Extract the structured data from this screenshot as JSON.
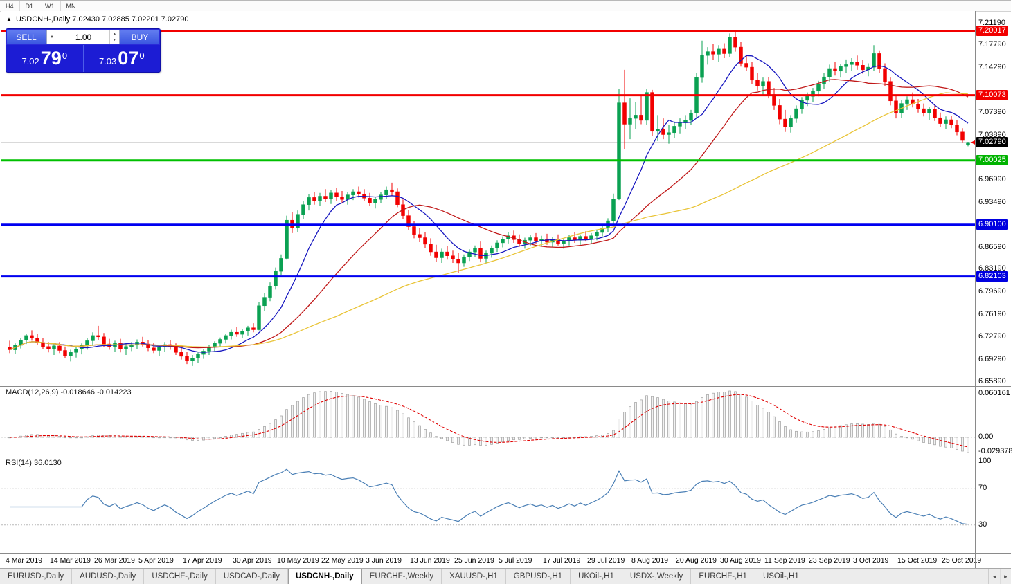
{
  "toolbar": {
    "timeframes": [
      "H4",
      "D1",
      "W1",
      "MN"
    ]
  },
  "chart": {
    "symbol_period": "USDCNH-,Daily",
    "ohlc_text": "7.02430 7.02885 7.02201 7.02790"
  },
  "icons": {
    "collapse_triangle": "▲",
    "volume_dropdown": "▼",
    "spinner_up": "▲",
    "spinner_down": "▼",
    "tab_scroll_left": "◄",
    "tab_scroll_right": "►"
  },
  "trade_panel": {
    "sell_label": "SELL",
    "buy_label": "BUY",
    "volume": "1.00",
    "bid_small": "7.02",
    "bid_big": "79",
    "bid_sup": "0",
    "ask_small": "7.03",
    "ask_big": "07",
    "ask_sup": "0"
  },
  "macd": {
    "label": "MACD(12,26,9) -0.018646 -0.014223",
    "axis_max": "0.060161",
    "axis_zero": "0.00",
    "axis_min": "-0.029378"
  },
  "rsi": {
    "label": "RSI(14) 36.0130",
    "axis": [
      "100",
      "70",
      "30"
    ]
  },
  "tabs": {
    "active_index": 4,
    "items": [
      "EURUSD-,Daily",
      "AUDUSD-,Daily",
      "USDCHF-,Daily",
      "USDCAD-,Daily",
      "USDCNH-,Daily",
      "EURCHF-,Weekly",
      "XAUUSD-,H1",
      "GBPUSD-,H1",
      "UKOil-,H1",
      "USDX-,Weekly",
      "EURCHF-,H1",
      "USOil-,H1"
    ]
  },
  "chart_data": {
    "type": "candlestick",
    "symbol": "USDCNH-",
    "period": "Daily",
    "current_price": 7.0279,
    "ylim": [
      6.652,
      7.2306
    ],
    "colors": {
      "candle_up": "#0aa152",
      "candle_down": "#f20000",
      "background": "#ffffff",
      "trade_panel_blue": "#1c1cd4"
    },
    "y_ticks": [
      "7.21190",
      "7.17790",
      "7.14290",
      "7.07390",
      "7.03890",
      "6.96990",
      "6.93490",
      "6.86590",
      "6.83190",
      "6.79690",
      "6.76190",
      "6.72790",
      "6.69290",
      "6.65890"
    ],
    "axis_markers": [
      {
        "label": "7.20017",
        "color": "#f20000"
      },
      {
        "label": "7.10073",
        "color": "#f20000"
      },
      {
        "label": "7.02790",
        "color": "#000000"
      },
      {
        "label": "7.00025",
        "color": "#00b300"
      },
      {
        "label": "6.90100",
        "color": "#0000e0"
      },
      {
        "label": "6.82103",
        "color": "#0000e0"
      }
    ],
    "horizontal_lines": [
      {
        "price": 7.20017,
        "color": "#f20000",
        "width": 3
      },
      {
        "price": 7.10073,
        "color": "#f20000",
        "width": 3
      },
      {
        "price": 7.00025,
        "color": "#00c000",
        "width": 3
      },
      {
        "price": 6.901,
        "color": "#0000f0",
        "width": 3
      },
      {
        "price": 6.82103,
        "color": "#0000f0",
        "width": 3
      }
    ],
    "indicators": {
      "moving_averages": [
        {
          "period": 10,
          "color": "#1818c0"
        },
        {
          "period": 25,
          "color": "#c01818"
        },
        {
          "period": 60,
          "color": "#e9c437"
        }
      ],
      "macd": {
        "fast": 12,
        "slow": 26,
        "signal": 9,
        "value": -0.018646,
        "signal_value": -0.014223
      },
      "rsi": {
        "period": 14,
        "value": 36.013,
        "levels": [
          70,
          30
        ]
      }
    },
    "x_labels": [
      {
        "i": 0,
        "label": "4 Mar 2019"
      },
      {
        "i": 8,
        "label": "14 Mar 2019"
      },
      {
        "i": 16,
        "label": "26 Mar 2019"
      },
      {
        "i": 24,
        "label": "5 Apr 2019"
      },
      {
        "i": 32,
        "label": "17 Apr 2019"
      },
      {
        "i": 41,
        "label": "30 Apr 2019"
      },
      {
        "i": 49,
        "label": "10 May 2019"
      },
      {
        "i": 57,
        "label": "22 May 2019"
      },
      {
        "i": 65,
        "label": "3 Jun 2019"
      },
      {
        "i": 73,
        "label": "13 Jun 2019"
      },
      {
        "i": 81,
        "label": "25 Jun 2019"
      },
      {
        "i": 89,
        "label": "5 Jul 2019"
      },
      {
        "i": 97,
        "label": "17 Jul 2019"
      },
      {
        "i": 105,
        "label": "29 Jul 2019"
      },
      {
        "i": 113,
        "label": "8 Aug 2019"
      },
      {
        "i": 121,
        "label": "20 Aug 2019"
      },
      {
        "i": 129,
        "label": "30 Aug 2019"
      },
      {
        "i": 137,
        "label": "11 Sep 2019"
      },
      {
        "i": 145,
        "label": "23 Sep 2019"
      },
      {
        "i": 153,
        "label": "3 Oct 2019"
      },
      {
        "i": 161,
        "label": "15 Oct 2019"
      },
      {
        "i": 169,
        "label": "25 Oct 2019"
      }
    ],
    "ohlc": [
      [
        6.712,
        6.722,
        6.703,
        6.708
      ],
      [
        6.708,
        6.718,
        6.702,
        6.715
      ],
      [
        6.715,
        6.726,
        6.71,
        6.723
      ],
      [
        6.723,
        6.733,
        6.717,
        6.73
      ],
      [
        6.73,
        6.738,
        6.722,
        6.726
      ],
      [
        6.726,
        6.733,
        6.715,
        6.719
      ],
      [
        6.719,
        6.726,
        6.709,
        6.713
      ],
      [
        6.713,
        6.72,
        6.704,
        6.709
      ],
      [
        6.709,
        6.717,
        6.7,
        6.714
      ],
      [
        6.714,
        6.72,
        6.703,
        6.707
      ],
      [
        6.707,
        6.713,
        6.695,
        6.699
      ],
      [
        6.699,
        6.708,
        6.69,
        6.704
      ],
      [
        6.704,
        6.712,
        6.696,
        6.709
      ],
      [
        6.709,
        6.718,
        6.701,
        6.715
      ],
      [
        6.715,
        6.726,
        6.708,
        6.722
      ],
      [
        6.722,
        6.735,
        6.714,
        6.73
      ],
      [
        6.73,
        6.745,
        6.723,
        6.728
      ],
      [
        6.728,
        6.734,
        6.712,
        6.717
      ],
      [
        6.717,
        6.725,
        6.708,
        6.713
      ],
      [
        6.713,
        6.722,
        6.705,
        6.718
      ],
      [
        6.718,
        6.725,
        6.704,
        6.709
      ],
      [
        6.709,
        6.717,
        6.7,
        6.713
      ],
      [
        6.713,
        6.72,
        6.706,
        6.716
      ],
      [
        6.716,
        6.724,
        6.709,
        6.72
      ],
      [
        6.72,
        6.728,
        6.713,
        6.717
      ],
      [
        6.717,
        6.723,
        6.706,
        6.711
      ],
      [
        6.711,
        6.719,
        6.703,
        6.707
      ],
      [
        6.707,
        6.715,
        6.698,
        6.712
      ],
      [
        6.712,
        6.72,
        6.705,
        6.716
      ],
      [
        6.716,
        6.723,
        6.708,
        6.712
      ],
      [
        6.712,
        6.718,
        6.7,
        6.704
      ],
      [
        6.704,
        6.711,
        6.693,
        6.698
      ],
      [
        6.698,
        6.705,
        6.686,
        6.691
      ],
      [
        6.691,
        6.7,
        6.683,
        6.695
      ],
      [
        6.695,
        6.704,
        6.688,
        6.701
      ],
      [
        6.701,
        6.709,
        6.694,
        6.706
      ],
      [
        6.706,
        6.715,
        6.7,
        6.712
      ],
      [
        6.712,
        6.721,
        6.706,
        6.718
      ],
      [
        6.718,
        6.727,
        6.712,
        6.724
      ],
      [
        6.724,
        6.733,
        6.718,
        6.73
      ],
      [
        6.73,
        6.739,
        6.724,
        6.735
      ],
      [
        6.735,
        6.743,
        6.728,
        6.732
      ],
      [
        6.732,
        6.74,
        6.726,
        6.737
      ],
      [
        6.737,
        6.745,
        6.73,
        6.742
      ],
      [
        6.742,
        6.749,
        6.735,
        6.739
      ],
      [
        6.739,
        6.782,
        6.738,
        6.776
      ],
      [
        6.776,
        6.795,
        6.768,
        6.789
      ],
      [
        6.789,
        6.812,
        6.783,
        6.806
      ],
      [
        6.806,
        6.835,
        6.801,
        6.829
      ],
      [
        6.829,
        6.855,
        6.823,
        6.849
      ],
      [
        6.849,
        6.915,
        6.847,
        6.908
      ],
      [
        6.908,
        6.921,
        6.888,
        6.896
      ],
      [
        6.896,
        6.923,
        6.89,
        6.917
      ],
      [
        6.917,
        6.938,
        6.91,
        6.932
      ],
      [
        6.932,
        6.948,
        6.923,
        6.943
      ],
      [
        6.943,
        6.952,
        6.932,
        6.938
      ],
      [
        6.938,
        6.95,
        6.93,
        6.945
      ],
      [
        6.945,
        6.956,
        6.936,
        6.941
      ],
      [
        6.941,
        6.955,
        6.933,
        6.95
      ],
      [
        6.95,
        6.958,
        6.938,
        6.944
      ],
      [
        6.944,
        6.953,
        6.935,
        6.94
      ],
      [
        6.94,
        6.951,
        6.932,
        6.947
      ],
      [
        6.947,
        6.956,
        6.939,
        6.952
      ],
      [
        6.952,
        6.96,
        6.943,
        6.948
      ],
      [
        6.948,
        6.956,
        6.937,
        6.942
      ],
      [
        6.942,
        6.95,
        6.93,
        6.935
      ],
      [
        6.935,
        6.944,
        6.926,
        6.94
      ],
      [
        6.94,
        6.952,
        6.934,
        6.947
      ],
      [
        6.947,
        6.96,
        6.941,
        6.955
      ],
      [
        6.955,
        6.966,
        6.946,
        6.952
      ],
      [
        6.952,
        6.957,
        6.928,
        6.932
      ],
      [
        6.932,
        6.94,
        6.91,
        6.915
      ],
      [
        6.915,
        6.924,
        6.893,
        6.898
      ],
      [
        6.898,
        6.907,
        6.88,
        6.886
      ],
      [
        6.886,
        6.896,
        6.874,
        6.881
      ],
      [
        6.881,
        6.889,
        6.865,
        6.871
      ],
      [
        6.871,
        6.88,
        6.853,
        6.859
      ],
      [
        6.859,
        6.87,
        6.844,
        6.85
      ],
      [
        6.85,
        6.864,
        6.842,
        6.859
      ],
      [
        6.859,
        6.868,
        6.847,
        6.853
      ],
      [
        6.853,
        6.861,
        6.842,
        6.848
      ],
      [
        6.848,
        6.857,
        6.826,
        6.842
      ],
      [
        6.842,
        6.855,
        6.836,
        6.851
      ],
      [
        6.851,
        6.863,
        6.845,
        6.859
      ],
      [
        6.859,
        6.869,
        6.851,
        6.865
      ],
      [
        6.865,
        6.875,
        6.843,
        6.849
      ],
      [
        6.849,
        6.861,
        6.842,
        6.857
      ],
      [
        6.857,
        6.869,
        6.85,
        6.865
      ],
      [
        6.865,
        6.877,
        6.859,
        6.873
      ],
      [
        6.873,
        6.883,
        6.866,
        6.879
      ],
      [
        6.879,
        6.889,
        6.872,
        6.884
      ],
      [
        6.884,
        6.892,
        6.873,
        6.878
      ],
      [
        6.878,
        6.886,
        6.867,
        6.872
      ],
      [
        6.872,
        6.881,
        6.864,
        6.877
      ],
      [
        6.877,
        6.885,
        6.869,
        6.881
      ],
      [
        6.881,
        6.888,
        6.871,
        6.876
      ],
      [
        6.876,
        6.884,
        6.868,
        6.879
      ],
      [
        6.879,
        6.887,
        6.87,
        6.874
      ],
      [
        6.874,
        6.882,
        6.866,
        6.878
      ],
      [
        6.878,
        6.886,
        6.869,
        6.872
      ],
      [
        6.872,
        6.88,
        6.864,
        6.876
      ],
      [
        6.876,
        6.885,
        6.869,
        6.881
      ],
      [
        6.881,
        6.889,
        6.873,
        6.877
      ],
      [
        6.877,
        6.886,
        6.87,
        6.883
      ],
      [
        6.883,
        6.891,
        6.875,
        6.879
      ],
      [
        6.879,
        6.888,
        6.872,
        6.884
      ],
      [
        6.884,
        6.893,
        6.877,
        6.889
      ],
      [
        6.889,
        6.9,
        6.883,
        6.896
      ],
      [
        6.896,
        6.911,
        6.889,
        6.907
      ],
      [
        6.907,
        6.949,
        6.901,
        6.941
      ],
      [
        6.941,
        7.111,
        6.939,
        7.089
      ],
      [
        7.089,
        7.14,
        7.018,
        7.056
      ],
      [
        7.056,
        7.096,
        7.033,
        7.065
      ],
      [
        7.065,
        7.09,
        7.048,
        7.07
      ],
      [
        7.07,
        7.1,
        7.056,
        7.062
      ],
      [
        7.062,
        7.11,
        7.055,
        7.105
      ],
      [
        7.105,
        7.109,
        7.038,
        7.045
      ],
      [
        7.045,
        7.07,
        7.03,
        7.048
      ],
      [
        7.048,
        7.065,
        7.033,
        7.04
      ],
      [
        7.04,
        7.055,
        7.026,
        7.043
      ],
      [
        7.043,
        7.06,
        7.035,
        7.053
      ],
      [
        7.053,
        7.065,
        7.042,
        7.058
      ],
      [
        7.058,
        7.07,
        7.048,
        7.062
      ],
      [
        7.062,
        7.078,
        7.055,
        7.073
      ],
      [
        7.073,
        7.135,
        7.065,
        7.128
      ],
      [
        7.128,
        7.185,
        7.12,
        7.162
      ],
      [
        7.162,
        7.175,
        7.148,
        7.168
      ],
      [
        7.168,
        7.18,
        7.155,
        7.164
      ],
      [
        7.164,
        7.178,
        7.152,
        7.172
      ],
      [
        7.172,
        7.181,
        7.158,
        7.165
      ],
      [
        7.165,
        7.196,
        7.16,
        7.19
      ],
      [
        7.19,
        7.199,
        7.168,
        7.175
      ],
      [
        7.175,
        7.183,
        7.145,
        7.15
      ],
      [
        7.15,
        7.162,
        7.138,
        7.144
      ],
      [
        7.144,
        7.152,
        7.118,
        7.124
      ],
      [
        7.124,
        7.135,
        7.108,
        7.115
      ],
      [
        7.115,
        7.128,
        7.102,
        7.122
      ],
      [
        7.122,
        7.129,
        7.096,
        7.102
      ],
      [
        7.102,
        7.112,
        7.078,
        7.085
      ],
      [
        7.085,
        7.095,
        7.056,
        7.064
      ],
      [
        7.064,
        7.078,
        7.044,
        7.052
      ],
      [
        7.052,
        7.07,
        7.043,
        7.065
      ],
      [
        7.065,
        7.085,
        7.058,
        7.08
      ],
      [
        7.08,
        7.098,
        7.072,
        7.093
      ],
      [
        7.093,
        7.105,
        7.084,
        7.099
      ],
      [
        7.099,
        7.112,
        7.09,
        7.107
      ],
      [
        7.107,
        7.123,
        7.099,
        7.118
      ],
      [
        7.118,
        7.135,
        7.11,
        7.129
      ],
      [
        7.129,
        7.148,
        7.122,
        7.142
      ],
      [
        7.142,
        7.152,
        7.131,
        7.138
      ],
      [
        7.138,
        7.149,
        7.128,
        7.145
      ],
      [
        7.145,
        7.156,
        7.135,
        7.148
      ],
      [
        7.148,
        7.158,
        7.138,
        7.152
      ],
      [
        7.152,
        7.162,
        7.14,
        7.147
      ],
      [
        7.147,
        7.155,
        7.134,
        7.14
      ],
      [
        7.14,
        7.15,
        7.13,
        7.144
      ],
      [
        7.144,
        7.178,
        7.138,
        7.165
      ],
      [
        7.165,
        7.17,
        7.135,
        7.142
      ],
      [
        7.142,
        7.15,
        7.115,
        7.122
      ],
      [
        7.122,
        7.128,
        7.085,
        7.092
      ],
      [
        7.092,
        7.102,
        7.065,
        7.073
      ],
      [
        7.073,
        7.093,
        7.066,
        7.088
      ],
      [
        7.088,
        7.099,
        7.078,
        7.094
      ],
      [
        7.094,
        7.105,
        7.082,
        7.087
      ],
      [
        7.087,
        7.095,
        7.074,
        7.08
      ],
      [
        7.08,
        7.088,
        7.068,
        7.073
      ],
      [
        7.073,
        7.083,
        7.062,
        7.079
      ],
      [
        7.079,
        7.085,
        7.061,
        7.066
      ],
      [
        7.066,
        7.074,
        7.052,
        7.057
      ],
      [
        7.057,
        7.068,
        7.048,
        7.063
      ],
      [
        7.063,
        7.069,
        7.05,
        7.055
      ],
      [
        7.055,
        7.062,
        7.039,
        7.044
      ],
      [
        7.044,
        7.05,
        7.028,
        7.031
      ],
      [
        7.0243,
        7.02885,
        7.02201,
        7.0279
      ]
    ]
  }
}
